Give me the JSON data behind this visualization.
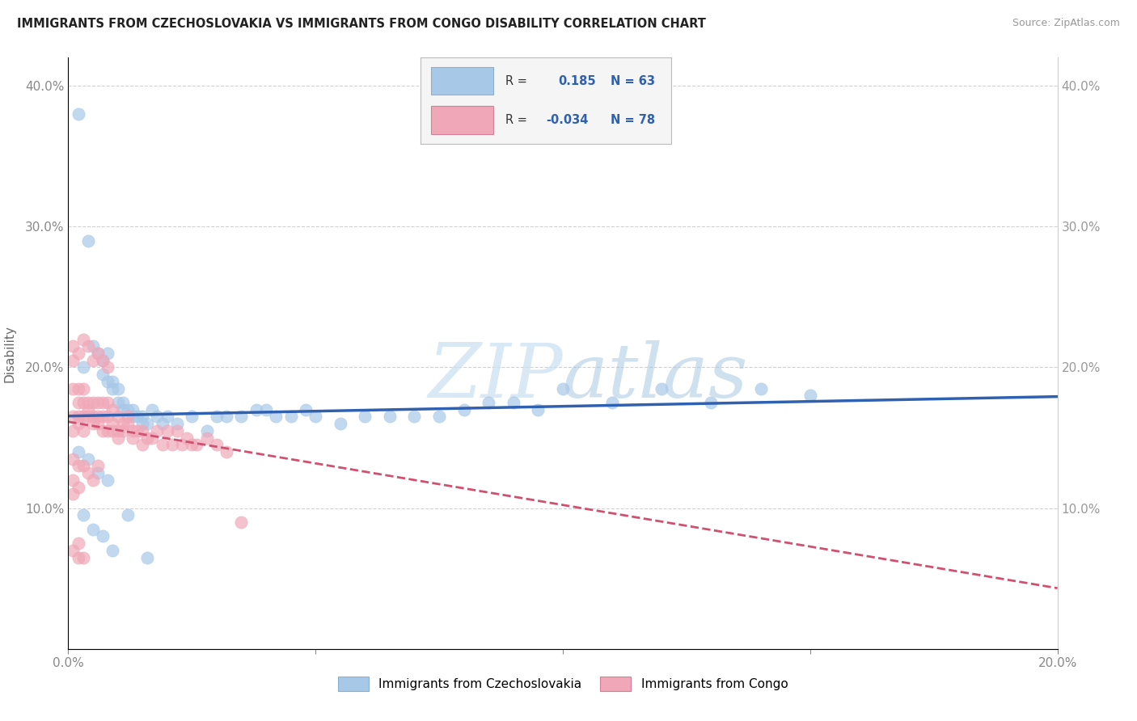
{
  "title": "IMMIGRANTS FROM CZECHOSLOVAKIA VS IMMIGRANTS FROM CONGO DISABILITY CORRELATION CHART",
  "source": "Source: ZipAtlas.com",
  "ylabel": "Disability",
  "legend_label_1": "Immigrants from Czechoslovakia",
  "legend_label_2": "Immigrants from Congo",
  "R1": 0.185,
  "N1": 63,
  "R2": -0.034,
  "N2": 78,
  "color1": "#a8c8e8",
  "color2": "#f0a8b8",
  "trendline1_color": "#3060b0",
  "trendline2_color": "#d05070",
  "xlim": [
    0.0,
    0.2
  ],
  "ylim": [
    0.0,
    0.42
  ],
  "background_color": "#ffffff",
  "grid_color": "#cccccc",
  "right_axis_color": "#999999",
  "scatter1_x": [
    0.002,
    0.004,
    0.003,
    0.005,
    0.006,
    0.007,
    0.007,
    0.008,
    0.008,
    0.009,
    0.009,
    0.01,
    0.01,
    0.011,
    0.011,
    0.012,
    0.013,
    0.013,
    0.014,
    0.015,
    0.015,
    0.016,
    0.017,
    0.018,
    0.019,
    0.02,
    0.022,
    0.025,
    0.028,
    0.03,
    0.032,
    0.035,
    0.038,
    0.04,
    0.042,
    0.045,
    0.048,
    0.05,
    0.055,
    0.06,
    0.065,
    0.07,
    0.075,
    0.08,
    0.085,
    0.09,
    0.095,
    0.1,
    0.11,
    0.12,
    0.13,
    0.14,
    0.15,
    0.003,
    0.005,
    0.007,
    0.009,
    0.002,
    0.004,
    0.006,
    0.008,
    0.012,
    0.016
  ],
  "scatter1_y": [
    0.38,
    0.29,
    0.2,
    0.215,
    0.21,
    0.205,
    0.195,
    0.19,
    0.21,
    0.185,
    0.19,
    0.185,
    0.175,
    0.17,
    0.175,
    0.17,
    0.165,
    0.17,
    0.165,
    0.165,
    0.16,
    0.16,
    0.17,
    0.165,
    0.16,
    0.165,
    0.16,
    0.165,
    0.155,
    0.165,
    0.165,
    0.165,
    0.17,
    0.17,
    0.165,
    0.165,
    0.17,
    0.165,
    0.16,
    0.165,
    0.165,
    0.165,
    0.165,
    0.17,
    0.175,
    0.175,
    0.17,
    0.185,
    0.175,
    0.185,
    0.175,
    0.185,
    0.18,
    0.095,
    0.085,
    0.08,
    0.07,
    0.14,
    0.135,
    0.125,
    0.12,
    0.095,
    0.065
  ],
  "scatter2_x": [
    0.001,
    0.001,
    0.001,
    0.002,
    0.002,
    0.002,
    0.003,
    0.003,
    0.003,
    0.004,
    0.004,
    0.004,
    0.005,
    0.005,
    0.005,
    0.006,
    0.006,
    0.006,
    0.007,
    0.007,
    0.007,
    0.008,
    0.008,
    0.008,
    0.009,
    0.009,
    0.009,
    0.01,
    0.01,
    0.01,
    0.011,
    0.011,
    0.012,
    0.012,
    0.013,
    0.013,
    0.014,
    0.015,
    0.015,
    0.016,
    0.017,
    0.018,
    0.019,
    0.02,
    0.021,
    0.022,
    0.023,
    0.024,
    0.025,
    0.026,
    0.028,
    0.03,
    0.032,
    0.035,
    0.001,
    0.002,
    0.003,
    0.004,
    0.005,
    0.006,
    0.007,
    0.008,
    0.001,
    0.002,
    0.003,
    0.001,
    0.002,
    0.003,
    0.004,
    0.005,
    0.006,
    0.001,
    0.002,
    0.003,
    0.001,
    0.002,
    0.001,
    0.002
  ],
  "scatter2_y": [
    0.205,
    0.185,
    0.165,
    0.185,
    0.175,
    0.165,
    0.185,
    0.175,
    0.165,
    0.175,
    0.17,
    0.165,
    0.175,
    0.165,
    0.16,
    0.175,
    0.165,
    0.16,
    0.175,
    0.165,
    0.155,
    0.175,
    0.165,
    0.155,
    0.17,
    0.16,
    0.155,
    0.165,
    0.155,
    0.15,
    0.16,
    0.155,
    0.165,
    0.16,
    0.155,
    0.15,
    0.155,
    0.155,
    0.145,
    0.15,
    0.15,
    0.155,
    0.145,
    0.155,
    0.145,
    0.155,
    0.145,
    0.15,
    0.145,
    0.145,
    0.15,
    0.145,
    0.14,
    0.09,
    0.215,
    0.21,
    0.22,
    0.215,
    0.205,
    0.21,
    0.205,
    0.2,
    0.155,
    0.16,
    0.155,
    0.135,
    0.13,
    0.13,
    0.125,
    0.12,
    0.13,
    0.07,
    0.075,
    0.065,
    0.12,
    0.115,
    0.11,
    0.065
  ]
}
